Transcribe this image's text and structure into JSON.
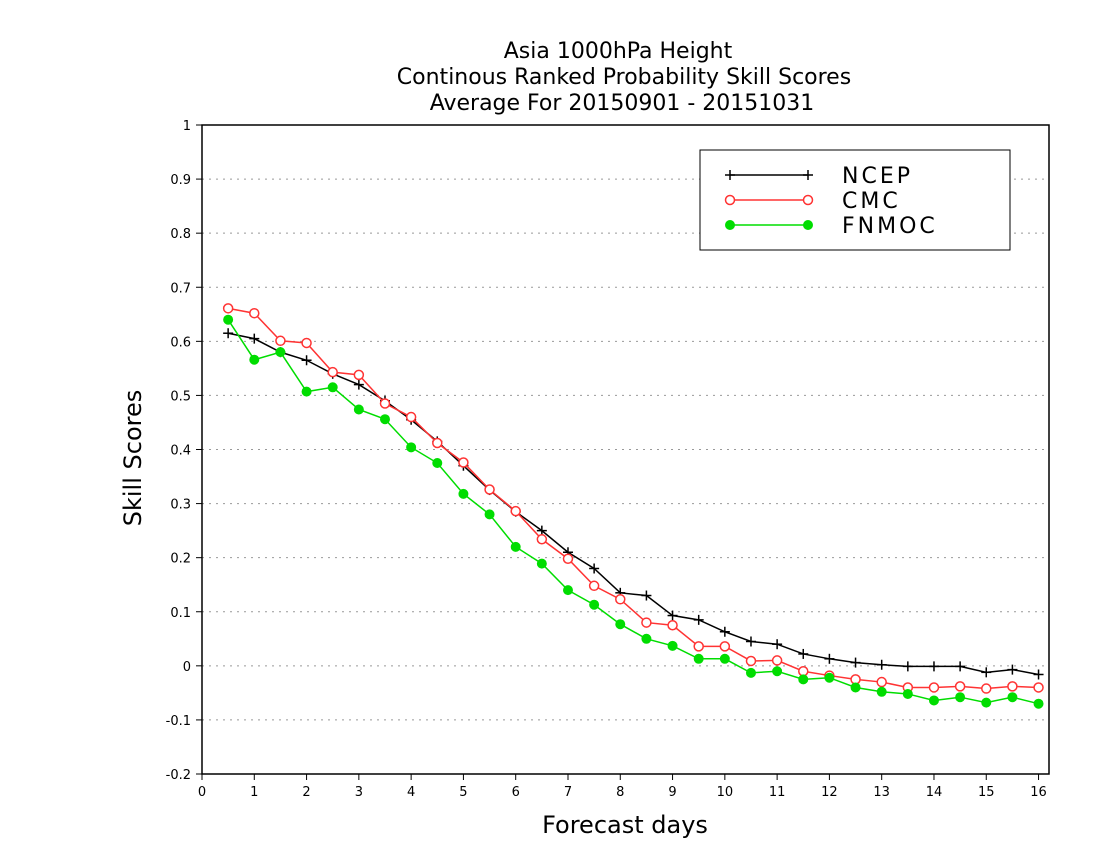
{
  "chart_data": {
    "type": "line",
    "title_lines": [
      "Asia 1000hPa Height",
      "Continous Ranked Probability Skill Scores",
      "Average For 20150901 - 20151031"
    ],
    "xlabel": "Forecast days",
    "ylabel": "Skill Scores",
    "xlim": [
      0,
      16.2
    ],
    "ylim": [
      -0.2,
      1
    ],
    "xticks": [
      0,
      1,
      2,
      3,
      4,
      5,
      6,
      7,
      8,
      9,
      10,
      11,
      12,
      13,
      14,
      15,
      16
    ],
    "yticks": [
      -0.2,
      -0.1,
      0,
      0.1,
      0.2,
      0.3,
      0.4,
      0.5,
      0.6,
      0.7,
      0.8,
      0.9,
      1
    ],
    "ytick_labels": [
      "-0.2",
      "-0.1",
      "0",
      "0.1",
      "0.2",
      "0.3",
      "0.4",
      "0.5",
      "0.6",
      "0.7",
      "0.8",
      "0.9",
      "1"
    ],
    "grid": "horizontal-dotted",
    "legend_position": "top-right",
    "x": [
      0.5,
      1,
      1.5,
      2,
      2.5,
      3,
      3.5,
      4,
      4.5,
      5,
      5.5,
      6,
      6.5,
      7,
      7.5,
      8,
      8.5,
      9,
      9.5,
      10,
      10.5,
      11,
      11.5,
      12,
      12.5,
      13,
      13.5,
      14,
      14.5,
      15,
      15.5,
      16
    ],
    "series": [
      {
        "name": "NCEP",
        "color": "#000000",
        "marker": "plus",
        "values": [
          0.615,
          0.605,
          0.58,
          0.565,
          0.54,
          0.52,
          0.49,
          0.455,
          0.415,
          0.37,
          0.325,
          0.285,
          0.25,
          0.21,
          0.18,
          0.135,
          0.13,
          0.093,
          0.085,
          0.063,
          0.045,
          0.04,
          0.022,
          0.013,
          0.006,
          0.002,
          -0.001,
          -0.001,
          -0.001,
          -0.012,
          -0.007,
          -0.016
        ]
      },
      {
        "name": "CMC",
        "color": "#ff3333",
        "marker": "open-circle",
        "values": [
          0.661,
          0.652,
          0.601,
          0.597,
          0.543,
          0.538,
          0.485,
          0.46,
          0.412,
          0.376,
          0.326,
          0.286,
          0.234,
          0.198,
          0.148,
          0.123,
          0.08,
          0.075,
          0.036,
          0.036,
          0.009,
          0.01,
          -0.01,
          -0.018,
          -0.025,
          -0.03,
          -0.04,
          -0.04,
          -0.038,
          -0.042,
          -0.038,
          -0.04
        ]
      },
      {
        "name": "FNMOC",
        "color": "#00dd00",
        "marker": "filled-circle",
        "values": [
          0.64,
          0.566,
          0.58,
          0.507,
          0.515,
          0.474,
          0.456,
          0.404,
          0.375,
          0.318,
          0.28,
          0.22,
          0.189,
          0.14,
          0.113,
          0.077,
          0.05,
          0.037,
          0.013,
          0.013,
          -0.013,
          -0.01,
          -0.025,
          -0.022,
          -0.04,
          -0.048,
          -0.052,
          -0.064,
          -0.058,
          -0.068,
          -0.058,
          -0.07
        ]
      }
    ]
  }
}
